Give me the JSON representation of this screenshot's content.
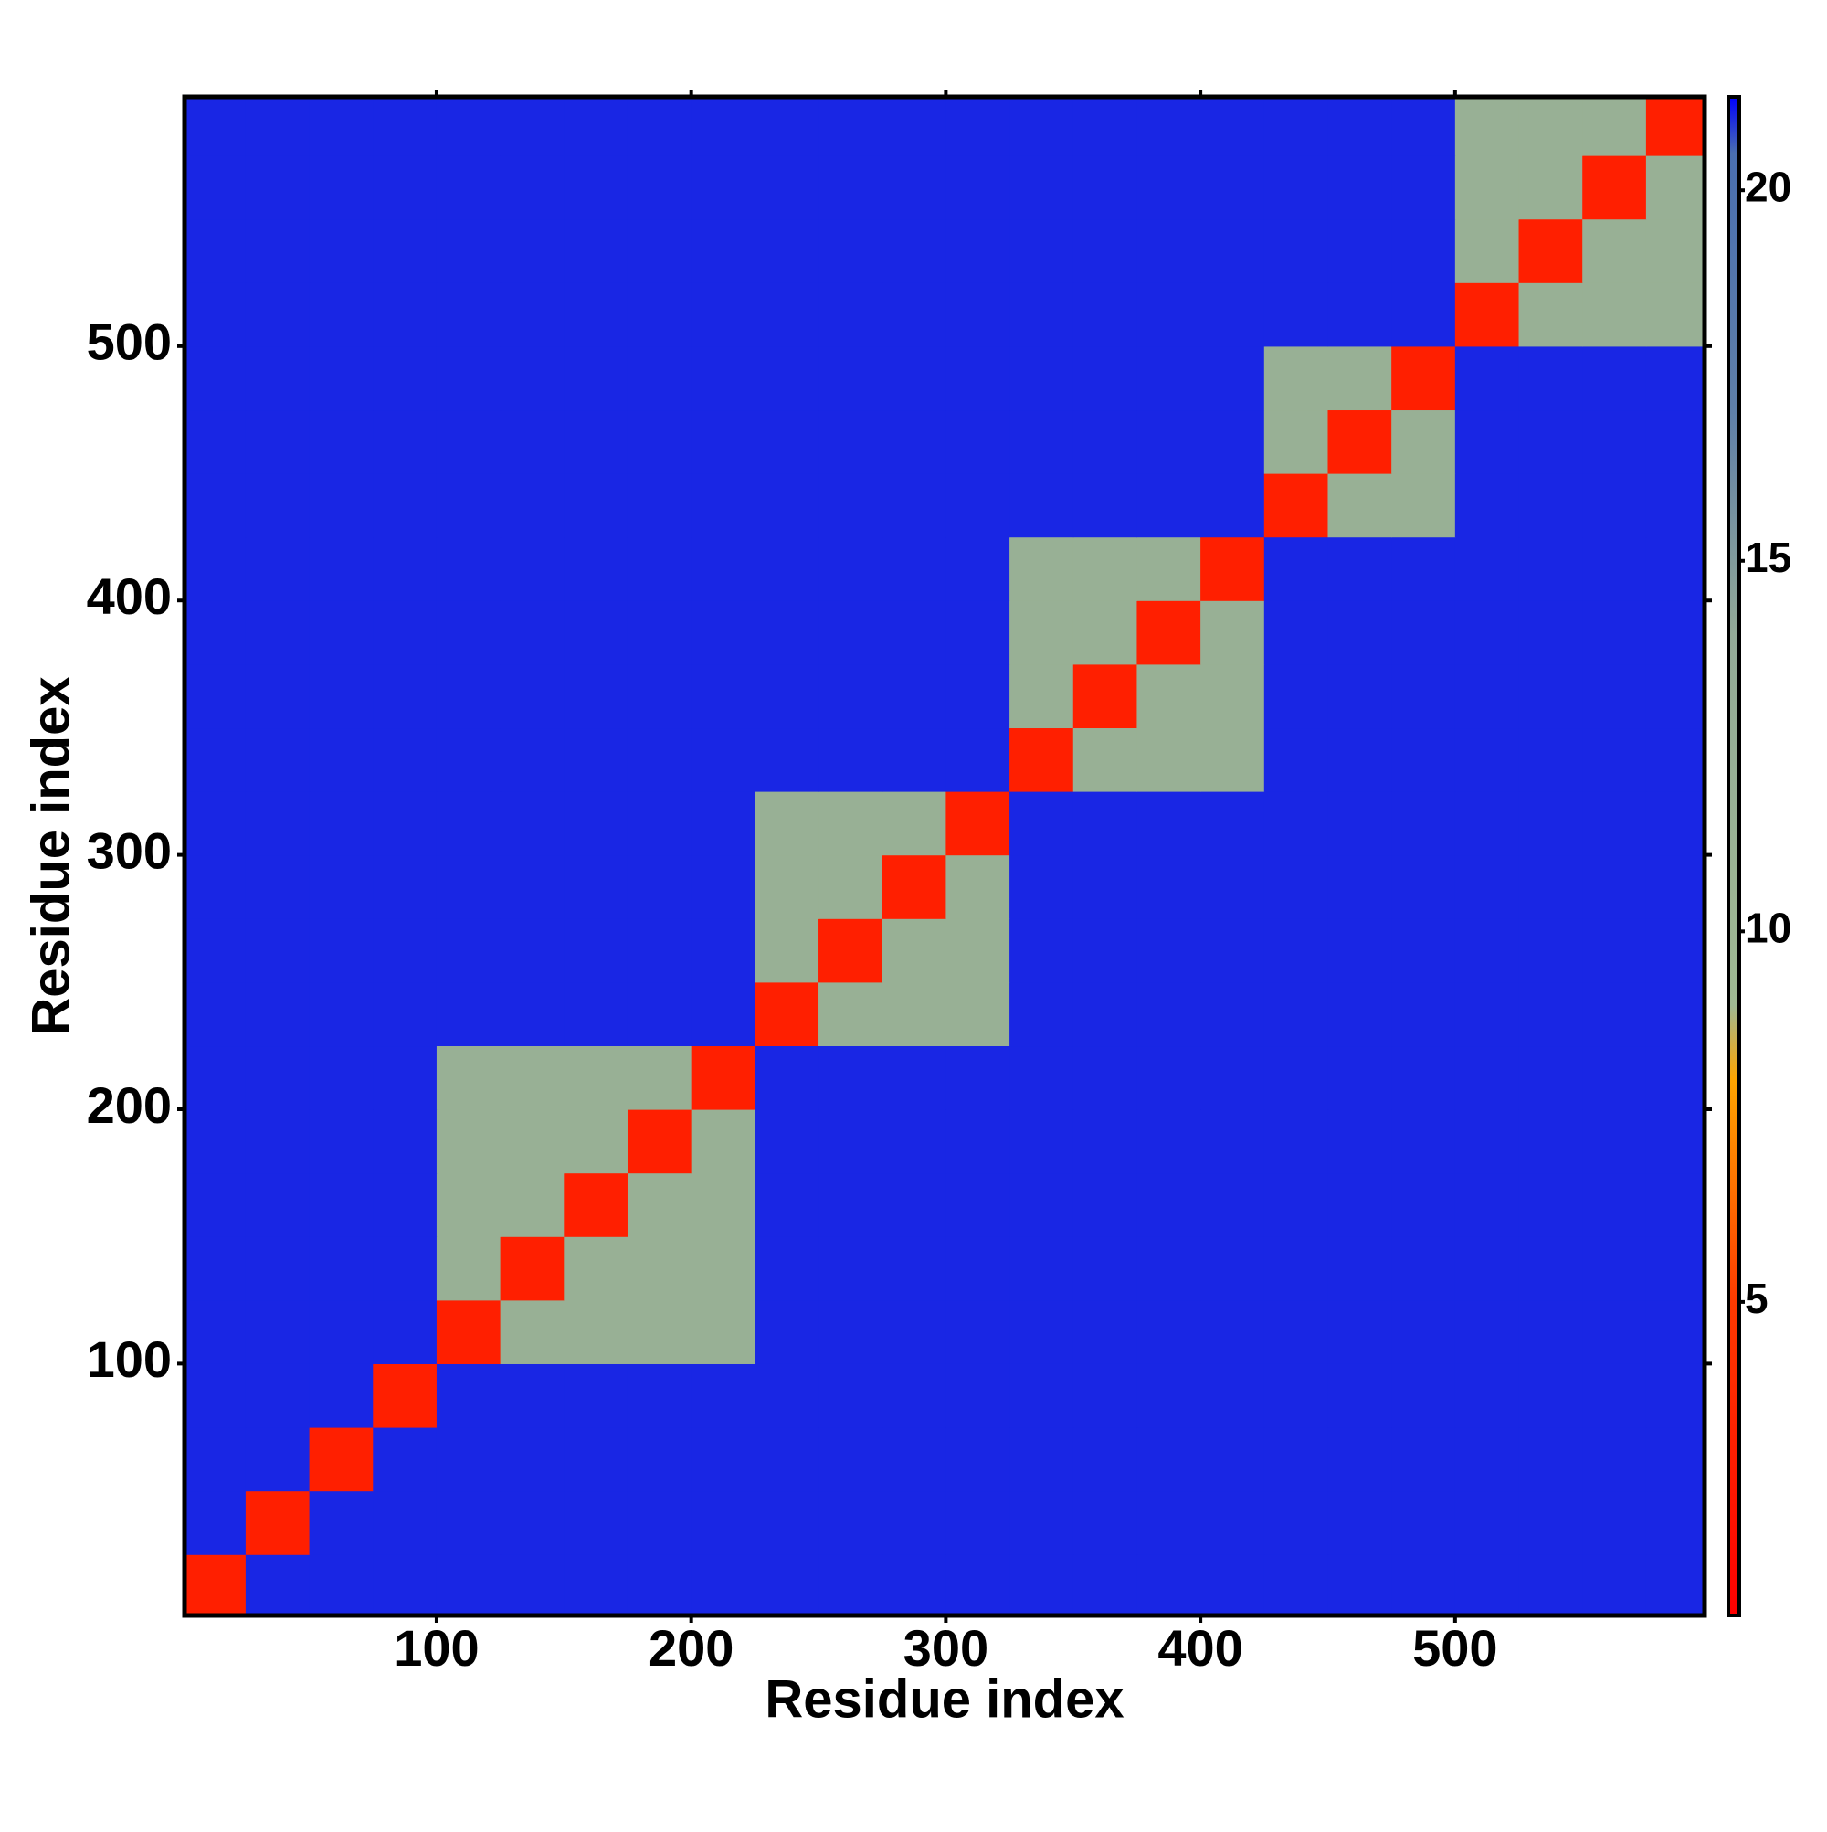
{
  "chart_data": {
    "type": "heatmap",
    "xlabel": "Residue index",
    "ylabel": "Residue index",
    "x": [
      0,
      25,
      50,
      75,
      100,
      125,
      150,
      175,
      200,
      225,
      250,
      275,
      300,
      325,
      350,
      375,
      400,
      425,
      450,
      475,
      500,
      525,
      550,
      575,
      600
    ],
    "y": [
      0,
      25,
      50,
      75,
      100,
      125,
      150,
      175,
      200,
      225,
      250,
      275,
      300,
      325,
      350,
      375,
      400,
      425,
      450,
      475,
      500,
      525,
      550,
      575,
      600
    ],
    "values": [
      [
        3,
        21,
        21,
        21,
        21,
        21,
        21,
        21,
        21,
        21,
        21,
        21,
        21,
        21,
        21,
        21,
        21,
        21,
        21,
        21,
        21,
        21,
        21,
        21
      ],
      [
        21,
        3,
        21,
        21,
        21,
        21,
        21,
        21,
        21,
        21,
        21,
        21,
        21,
        21,
        21,
        21,
        21,
        21,
        21,
        21,
        21,
        21,
        21,
        21
      ],
      [
        21,
        21,
        3,
        21,
        21,
        21,
        21,
        21,
        21,
        21,
        21,
        21,
        21,
        21,
        21,
        21,
        21,
        21,
        21,
        21,
        21,
        21,
        21,
        21
      ],
      [
        21,
        21,
        21,
        3,
        21,
        21,
        21,
        21,
        21,
        21,
        21,
        21,
        21,
        21,
        21,
        21,
        21,
        21,
        21,
        21,
        21,
        21,
        21,
        21
      ],
      [
        21,
        21,
        21,
        21,
        3,
        12,
        12,
        12,
        12,
        21,
        21,
        21,
        21,
        21,
        21,
        21,
        21,
        21,
        21,
        21,
        21,
        21,
        21,
        21
      ],
      [
        21,
        21,
        21,
        21,
        12,
        3,
        12,
        12,
        12,
        21,
        21,
        21,
        21,
        21,
        21,
        21,
        21,
        21,
        21,
        21,
        21,
        21,
        21,
        21
      ],
      [
        21,
        21,
        21,
        21,
        12,
        12,
        3,
        12,
        12,
        21,
        21,
        21,
        21,
        21,
        21,
        21,
        21,
        21,
        21,
        21,
        21,
        21,
        21,
        21
      ],
      [
        21,
        21,
        21,
        21,
        12,
        12,
        12,
        3,
        12,
        21,
        21,
        21,
        21,
        21,
        21,
        21,
        21,
        21,
        21,
        21,
        21,
        21,
        21,
        21
      ],
      [
        21,
        21,
        21,
        21,
        12,
        12,
        12,
        12,
        3,
        21,
        21,
        21,
        21,
        21,
        21,
        21,
        21,
        21,
        21,
        21,
        21,
        21,
        21,
        21
      ],
      [
        21,
        21,
        21,
        21,
        21,
        21,
        21,
        21,
        21,
        3,
        12,
        12,
        12,
        21,
        21,
        21,
        21,
        21,
        21,
        21,
        21,
        21,
        21,
        21
      ],
      [
        21,
        21,
        21,
        21,
        21,
        21,
        21,
        21,
        21,
        12,
        3,
        12,
        12,
        21,
        21,
        21,
        21,
        21,
        21,
        21,
        21,
        21,
        21,
        21
      ],
      [
        21,
        21,
        21,
        21,
        21,
        21,
        21,
        21,
        21,
        12,
        12,
        3,
        12,
        21,
        21,
        21,
        21,
        21,
        21,
        21,
        21,
        21,
        21,
        21
      ],
      [
        21,
        21,
        21,
        21,
        21,
        21,
        21,
        21,
        21,
        12,
        12,
        12,
        3,
        21,
        21,
        21,
        21,
        21,
        21,
        21,
        21,
        21,
        21,
        21
      ],
      [
        21,
        21,
        21,
        21,
        21,
        21,
        21,
        21,
        21,
        21,
        21,
        21,
        21,
        3,
        12,
        12,
        12,
        21,
        21,
        21,
        21,
        21,
        21,
        21
      ],
      [
        21,
        21,
        21,
        21,
        21,
        21,
        21,
        21,
        21,
        21,
        21,
        21,
        21,
        12,
        3,
        12,
        12,
        21,
        21,
        21,
        21,
        21,
        21,
        21
      ],
      [
        21,
        21,
        21,
        21,
        21,
        21,
        21,
        21,
        21,
        21,
        21,
        21,
        21,
        12,
        12,
        3,
        12,
        21,
        21,
        21,
        21,
        21,
        21,
        21
      ],
      [
        21,
        21,
        21,
        21,
        21,
        21,
        21,
        21,
        21,
        21,
        21,
        21,
        21,
        12,
        12,
        12,
        3,
        21,
        21,
        21,
        21,
        21,
        21,
        21
      ],
      [
        21,
        21,
        21,
        21,
        21,
        21,
        21,
        21,
        21,
        21,
        21,
        21,
        21,
        21,
        21,
        21,
        21,
        3,
        12,
        12,
        21,
        21,
        21,
        21
      ],
      [
        21,
        21,
        21,
        21,
        21,
        21,
        21,
        21,
        21,
        21,
        21,
        21,
        21,
        21,
        21,
        21,
        21,
        12,
        3,
        12,
        21,
        21,
        21,
        21
      ],
      [
        21,
        21,
        21,
        21,
        21,
        21,
        21,
        21,
        21,
        21,
        21,
        21,
        21,
        21,
        21,
        21,
        21,
        12,
        12,
        3,
        21,
        21,
        21,
        21
      ],
      [
        21,
        21,
        21,
        21,
        21,
        21,
        21,
        21,
        21,
        21,
        21,
        21,
        21,
        21,
        21,
        21,
        21,
        21,
        21,
        21,
        3,
        12,
        12,
        12
      ],
      [
        21,
        21,
        21,
        21,
        21,
        21,
        21,
        21,
        21,
        21,
        21,
        21,
        21,
        21,
        21,
        21,
        21,
        21,
        21,
        21,
        12,
        3,
        12,
        12
      ],
      [
        21,
        21,
        21,
        21,
        21,
        21,
        21,
        21,
        21,
        21,
        21,
        21,
        21,
        21,
        21,
        21,
        21,
        21,
        21,
        21,
        12,
        12,
        3,
        12
      ],
      [
        21,
        21,
        21,
        21,
        21,
        21,
        21,
        21,
        21,
        21,
        21,
        21,
        21,
        21,
        21,
        21,
        21,
        21,
        21,
        21,
        12,
        12,
        12,
        3
      ]
    ],
    "xlim": [
      1,
      598
    ],
    "ylim": [
      1,
      598
    ],
    "xticks": [
      100,
      200,
      300,
      400,
      500
    ],
    "yticks": [
      100,
      200,
      300,
      400,
      500
    ],
    "clim": [
      0.77,
      21.26
    ],
    "cticks": [
      5,
      10,
      15,
      20
    ],
    "colormap": [
      {
        "value": 0.77,
        "color": "#ff0000"
      },
      {
        "value": 5,
        "color": "#ff3a00"
      },
      {
        "value": 8,
        "color": "#ffa500"
      },
      {
        "value": 9,
        "color": "#9fb993"
      },
      {
        "value": 14,
        "color": "#93aa97"
      },
      {
        "value": 17,
        "color": "#5f7fa8"
      },
      {
        "value": 20.5,
        "color": "#4a6fb0"
      },
      {
        "value": 21.26,
        "color": "#0000ff"
      }
    ]
  }
}
